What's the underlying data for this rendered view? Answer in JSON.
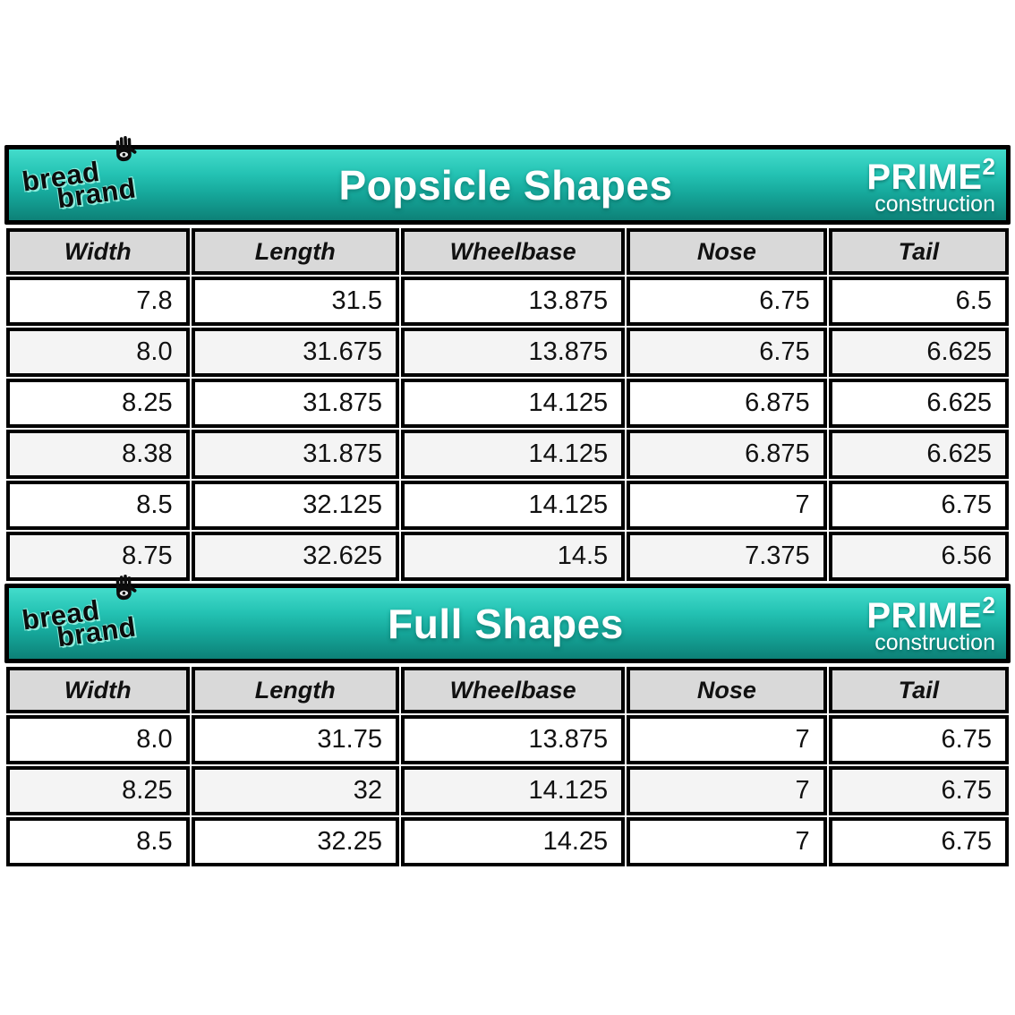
{
  "brand": {
    "line1": "bread",
    "line2": "brand"
  },
  "prime_badge": {
    "name": "PRIME",
    "exponent": "2",
    "subtitle": "construction"
  },
  "colors": {
    "teal_top": "#43dccb",
    "teal_bottom": "#0d8177",
    "header_cell_gray": "#d9d9d9",
    "alt_row_gray": "#f4f4f4",
    "border_black": "#000000"
  },
  "tables": [
    {
      "title": "Popsicle Shapes",
      "columns": [
        "Width",
        "Length",
        "Wheelbase",
        "Nose",
        "Tail"
      ],
      "rows": [
        [
          "7.8",
          "31.5",
          "13.875",
          "6.75",
          "6.5"
        ],
        [
          "8.0",
          "31.675",
          "13.875",
          "6.75",
          "6.625"
        ],
        [
          "8.25",
          "31.875",
          "14.125",
          "6.875",
          "6.625"
        ],
        [
          "8.38",
          "31.875",
          "14.125",
          "6.875",
          "6.625"
        ],
        [
          "8.5",
          "32.125",
          "14.125",
          "7",
          "6.75"
        ],
        [
          "8.75",
          "32.625",
          "14.5",
          "7.375",
          "6.56"
        ]
      ]
    },
    {
      "title": "Full Shapes",
      "columns": [
        "Width",
        "Length",
        "Wheelbase",
        "Nose",
        "Tail"
      ],
      "rows": [
        [
          "8.0",
          "31.75",
          "13.875",
          "7",
          "6.75"
        ],
        [
          "8.25",
          "32",
          "14.125",
          "7",
          "6.75"
        ],
        [
          "8.5",
          "32.25",
          "14.25",
          "7",
          "6.75"
        ]
      ]
    }
  ]
}
